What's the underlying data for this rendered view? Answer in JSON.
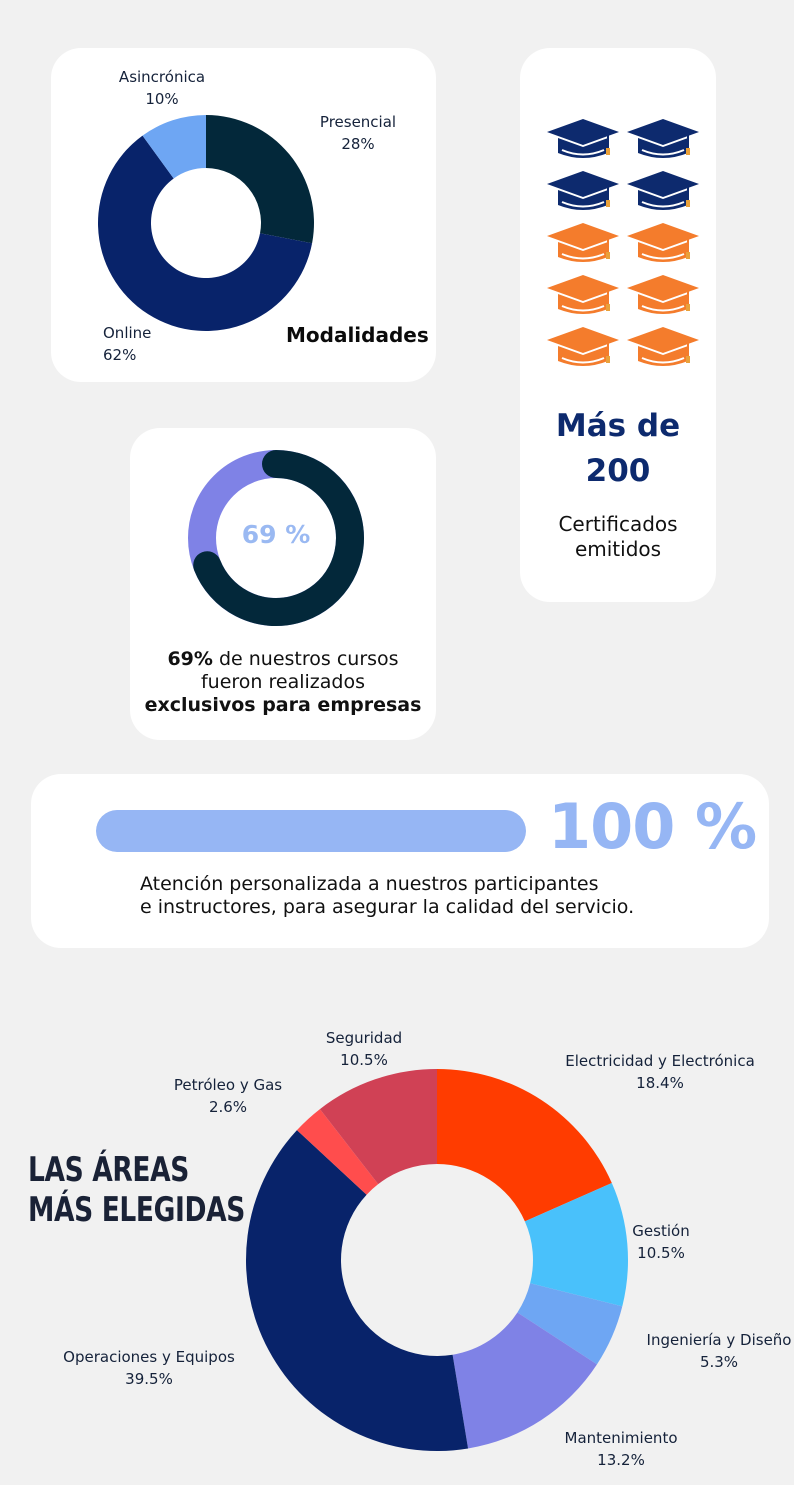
{
  "modalidades": {
    "title": "Modalidades",
    "chart_data": {
      "type": "pie",
      "categories": [
        "Presencial",
        "Online",
        "Asincrónica"
      ],
      "values": [
        28,
        62,
        10
      ],
      "value_labels": [
        "28%",
        "62%",
        "10%"
      ],
      "colors": [
        "#03283a",
        "#08236a",
        "#6ea6f3"
      ]
    }
  },
  "certificados": {
    "headline_line1": "Más de",
    "headline_line2": "200",
    "sub_line1": "Certificados",
    "sub_line2": "emitidos",
    "icon": "graduation-cap-icon",
    "icon_count": 10,
    "icon_colors": [
      "#0d2a6e",
      "#0d2a6e",
      "#0d2a6e",
      "#0d2a6e",
      "#f47c2c",
      "#f47c2c",
      "#f47c2c",
      "#f47c2c",
      "#f47c2c",
      "#f47c2c"
    ]
  },
  "empresas": {
    "percent_label": "69 %",
    "text_bold_start": "69%",
    "text_rest": " de nuestros cursos",
    "text_line2": "fueron realizados",
    "text_bold_end": "exclusivos para empresas",
    "value": 69,
    "colors": {
      "value": "#03283a",
      "rest": "#7f82e6"
    }
  },
  "atencion": {
    "percent_label": "100 %",
    "value": 100,
    "text_line1": "Atención personalizada a nuestros participantes",
    "text_line2": "e instructores, para asegurar la calidad del servicio."
  },
  "areas": {
    "title_line1": "LAS ÁREAS",
    "title_line2": "MÁS ELEGIDAS",
    "chart_data": {
      "type": "pie",
      "categories": [
        "Electricidad y Electrónica",
        "Gestión",
        "Ingeniería y Diseño",
        "Mantenimiento",
        "Operaciones y Equipos",
        "Petróleo y Gas",
        "Seguridad"
      ],
      "values": [
        18.4,
        10.5,
        5.3,
        13.2,
        39.5,
        2.6,
        10.5
      ],
      "value_labels": [
        "18.4%",
        "10.5%",
        "5.3%",
        "13.2%",
        "39.5%",
        "2.6%",
        "10.5%"
      ],
      "colors": [
        "#ff3c00",
        "#49c1fb",
        "#6ea6f3",
        "#7f82e6",
        "#08236a",
        "#ff4d4d",
        "#d04155"
      ]
    }
  }
}
